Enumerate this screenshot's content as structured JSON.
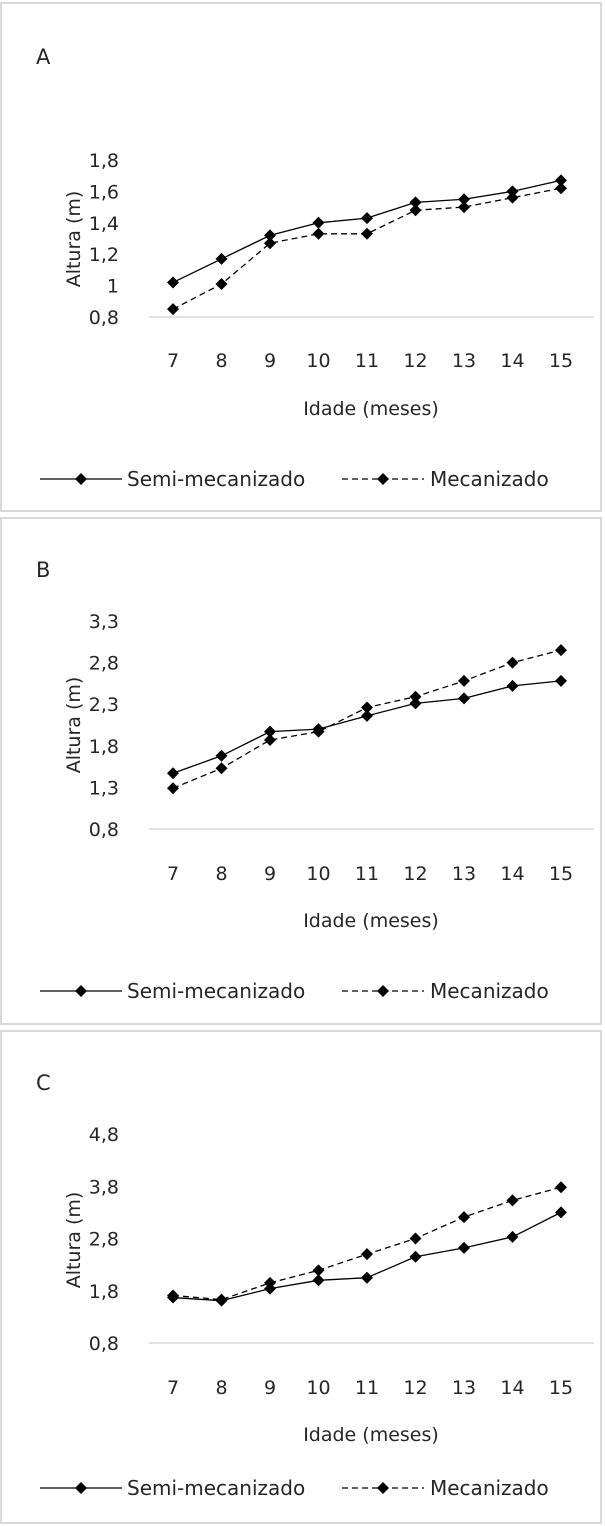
{
  "chart_data": [
    {
      "type": "line",
      "panel_label": "A",
      "xlabel": "Idade (meses)",
      "ylabel": "Altura (m)",
      "x": [
        7,
        8,
        9,
        10,
        11,
        12,
        13,
        14,
        15
      ],
      "ylim": [
        0.8,
        1.8
      ],
      "yticks": [
        "0,8",
        "1",
        "1,2",
        "1,4",
        "1,6",
        "1,8"
      ],
      "grid": false,
      "legend_position": "bottom",
      "series": [
        {
          "name": "Semi-mecanizado",
          "line_style": "solid",
          "marker": "diamond",
          "color": "#000000",
          "values": [
            1.02,
            1.17,
            1.32,
            1.4,
            1.43,
            1.53,
            1.55,
            1.6,
            1.67
          ]
        },
        {
          "name": "Mecanizado",
          "line_style": "dashed",
          "marker": "diamond",
          "color": "#000000",
          "values": [
            0.85,
            1.01,
            1.27,
            1.33,
            1.33,
            1.48,
            1.5,
            1.56,
            1.62
          ]
        }
      ]
    },
    {
      "type": "line",
      "panel_label": "B",
      "xlabel": "Idade (meses)",
      "ylabel": "Altura (m)",
      "x": [
        7,
        8,
        9,
        10,
        11,
        12,
        13,
        14,
        15
      ],
      "ylim": [
        0.8,
        3.3
      ],
      "yticks": [
        "0,8",
        "1,3",
        "1,8",
        "2,3",
        "2,8",
        "3,3"
      ],
      "grid": false,
      "legend_position": "bottom",
      "series": [
        {
          "name": "Semi-mecanizado",
          "line_style": "solid",
          "marker": "diamond",
          "color": "#000000",
          "values": [
            1.47,
            1.68,
            1.97,
            2.0,
            2.16,
            2.31,
            2.37,
            2.52,
            2.58
          ]
        },
        {
          "name": "Mecanizado",
          "line_style": "dashed",
          "marker": "diamond",
          "color": "#000000",
          "values": [
            1.29,
            1.53,
            1.87,
            1.97,
            2.26,
            2.39,
            2.58,
            2.8,
            2.95
          ]
        }
      ]
    },
    {
      "type": "line",
      "panel_label": "C",
      "xlabel": "Idade (meses)",
      "ylabel": "Altura (m)",
      "x": [
        7,
        8,
        9,
        10,
        11,
        12,
        13,
        14,
        15
      ],
      "ylim": [
        0.8,
        4.8
      ],
      "yticks": [
        "0,8",
        "1,8",
        "2,8",
        "3,8",
        "4,8"
      ],
      "grid": false,
      "legend_position": "bottom",
      "series": [
        {
          "name": "Semi-mecanizado",
          "line_style": "solid",
          "marker": "diamond",
          "color": "#000000",
          "values": [
            1.67,
            1.61,
            1.84,
            2.0,
            2.05,
            2.45,
            2.62,
            2.83,
            3.3
          ]
        },
        {
          "name": "Mecanizado",
          "line_style": "dashed",
          "marker": "diamond",
          "color": "#000000",
          "values": [
            1.71,
            1.63,
            1.95,
            2.19,
            2.5,
            2.8,
            3.21,
            3.53,
            3.78
          ]
        }
      ]
    }
  ]
}
